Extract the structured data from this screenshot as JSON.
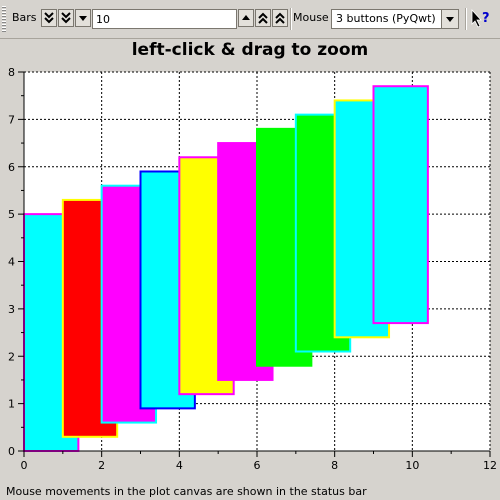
{
  "toolbar": {
    "bars_label": "Bars",
    "bars_value": "10",
    "mouse_label": "Mouse",
    "mouse_mode": "3 buttons (PyQwt)",
    "icons": [
      "double-chevron-down-icon",
      "chevron-down-icon",
      "chevron-up-icon",
      "double-chevron-up-icon",
      "whats-this-icon"
    ]
  },
  "title": "left-click & drag to zoom",
  "status": "Mouse movements in the plot canvas are shown in the status bar",
  "chart_data": {
    "type": "bar",
    "title": "left-click & drag to zoom",
    "xlim": [
      0,
      12
    ],
    "ylim": [
      0,
      8
    ],
    "xticks": [
      0,
      2,
      4,
      6,
      8,
      10,
      12
    ],
    "yticks": [
      0,
      1,
      2,
      3,
      4,
      5,
      6,
      7,
      8
    ],
    "xtick_labels": [
      "0",
      "2",
      "4",
      "6",
      "8",
      "10",
      "12"
    ],
    "ytick_labels": [
      "0",
      "1",
      "2",
      "3",
      "4",
      "5",
      "6",
      "7",
      "8"
    ],
    "grid": true,
    "bars": [
      {
        "x0": 0.0,
        "x1": 1.4,
        "y0": 0.0,
        "y1": 5.0,
        "fill": "#00ffff",
        "edge": "#ff00ff"
      },
      {
        "x0": 1.0,
        "x1": 2.4,
        "y0": 0.3,
        "y1": 5.3,
        "fill": "#ff0000",
        "edge": "#ffff00"
      },
      {
        "x0": 2.0,
        "x1": 3.4,
        "y0": 0.6,
        "y1": 5.6,
        "fill": "#ff00ff",
        "edge": "#00ffff"
      },
      {
        "x0": 3.0,
        "x1": 4.4,
        "y0": 0.9,
        "y1": 5.9,
        "fill": "#00ffff",
        "edge": "#0000ff"
      },
      {
        "x0": 4.0,
        "x1": 5.4,
        "y0": 1.2,
        "y1": 6.2,
        "fill": "#ffff00",
        "edge": "#ff00ff"
      },
      {
        "x0": 5.0,
        "x1": 6.4,
        "y0": 1.5,
        "y1": 6.5,
        "fill": "#ff00ff",
        "edge": "#ff00ff"
      },
      {
        "x0": 6.0,
        "x1": 7.4,
        "y0": 1.8,
        "y1": 6.8,
        "fill": "#00ff00",
        "edge": "#00ff00"
      },
      {
        "x0": 7.0,
        "x1": 8.4,
        "y0": 2.1,
        "y1": 7.1,
        "fill": "#00ff00",
        "edge": "#00ffff"
      },
      {
        "x0": 8.0,
        "x1": 9.4,
        "y0": 2.4,
        "y1": 7.4,
        "fill": "#00ffff",
        "edge": "#ffff00"
      },
      {
        "x0": 9.0,
        "x1": 10.4,
        "y0": 2.7,
        "y1": 7.7,
        "fill": "#00ffff",
        "edge": "#ff00ff"
      }
    ]
  }
}
